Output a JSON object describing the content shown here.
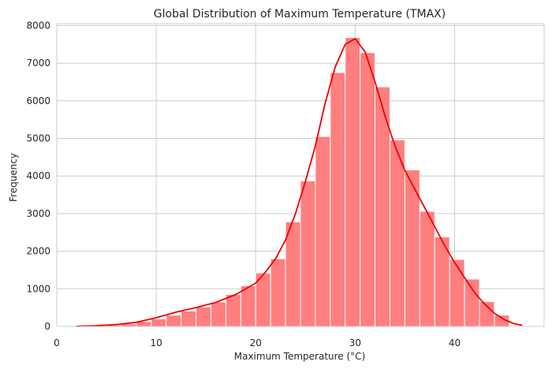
{
  "chart_data": {
    "type": "bar",
    "title": "Global Distribution of Maximum Temperature (TMAX)",
    "xlabel": "Maximum Temperature (°C)",
    "ylabel": "Frequency",
    "xlim": [
      0,
      49
    ],
    "ylim": [
      0,
      8050
    ],
    "xticks": [
      0,
      10,
      20,
      30,
      40
    ],
    "yticks": [
      0,
      1000,
      2000,
      3000,
      4000,
      5000,
      6000,
      7000,
      8000
    ],
    "grid": true,
    "bin_edges": [
      2.0,
      3.5,
      5.0,
      6.5,
      8.0,
      9.5,
      11.0,
      12.5,
      14.0,
      15.5,
      17.0,
      18.5,
      20.0,
      21.5,
      23.0,
      24.5,
      26.0,
      27.5,
      29.0,
      30.5,
      32.0,
      33.5,
      35.0,
      36.5,
      38.0,
      39.5,
      41.0,
      42.5,
      44.0,
      45.5
    ],
    "values": [
      10,
      20,
      40,
      70,
      130,
      200,
      300,
      410,
      520,
      650,
      850,
      1080,
      1420,
      1800,
      2780,
      3870,
      5050,
      6750,
      7680,
      7280,
      6370,
      4960,
      4160,
      3060,
      2380,
      1780,
      1260,
      660,
      300
    ],
    "kde": {
      "x": [
        2,
        4,
        6,
        8,
        10,
        12,
        14,
        16,
        18,
        20,
        21,
        22,
        23,
        24,
        25,
        26,
        27,
        28,
        29,
        30,
        31,
        32,
        33,
        34,
        35,
        36,
        37,
        38,
        39,
        40,
        41,
        42,
        43,
        44,
        45,
        46,
        46.8
      ],
      "y": [
        5,
        20,
        50,
        110,
        230,
        380,
        500,
        640,
        850,
        1150,
        1450,
        1800,
        2300,
        3000,
        3850,
        4800,
        5950,
        6900,
        7500,
        7650,
        7300,
        6500,
        5600,
        4800,
        4150,
        3650,
        3150,
        2650,
        2150,
        1700,
        1300,
        900,
        600,
        350,
        180,
        70,
        30
      ],
      "color": "#ee0000"
    },
    "bar_color": "#ff7f7f"
  }
}
